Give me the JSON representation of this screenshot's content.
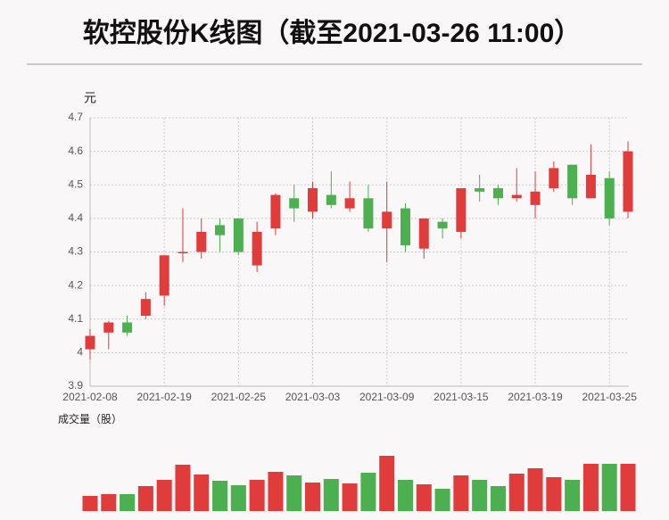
{
  "chart_data": [
    {
      "type": "candlestick",
      "title": "软控股份K线图（截至2021-03-26 11:00）",
      "y_label": "元",
      "categories": [
        "2021-02-08",
        null,
        null,
        null,
        "2021-02-19",
        null,
        null,
        null,
        "2021-02-25",
        null,
        null,
        null,
        "2021-03-03",
        null,
        null,
        null,
        "2021-03-09",
        null,
        null,
        null,
        "2021-03-15",
        null,
        null,
        null,
        "2021-03-19",
        null,
        null,
        null,
        "2021-03-25",
        null
      ],
      "open": [
        4.01,
        4.06,
        4.09,
        4.11,
        4.17,
        4.3,
        4.3,
        4.38,
        4.4,
        4.26,
        4.37,
        4.46,
        4.42,
        4.47,
        4.43,
        4.46,
        4.37,
        4.43,
        4.31,
        4.39,
        4.36,
        4.49,
        4.49,
        4.46,
        4.44,
        4.49,
        4.56,
        4.46,
        4.52,
        4.42
      ],
      "high": [
        4.07,
        4.095,
        4.11,
        4.18,
        4.29,
        4.43,
        4.4,
        4.4,
        4.4,
        4.39,
        4.475,
        4.5,
        4.51,
        4.54,
        4.51,
        4.5,
        4.51,
        4.445,
        4.4,
        4.4,
        4.49,
        4.53,
        4.5,
        4.55,
        4.54,
        4.57,
        4.56,
        4.62,
        4.54,
        4.63
      ],
      "low": [
        3.98,
        4.01,
        4.05,
        4.1,
        4.14,
        4.27,
        4.28,
        4.3,
        4.29,
        4.24,
        4.35,
        4.39,
        4.4,
        4.43,
        4.42,
        4.36,
        4.27,
        4.3,
        4.28,
        4.34,
        4.34,
        4.45,
        4.44,
        4.45,
        4.4,
        4.48,
        4.44,
        4.46,
        4.38,
        4.4
      ],
      "close": [
        4.05,
        4.09,
        4.06,
        4.16,
        4.29,
        4.3,
        4.36,
        4.35,
        4.3,
        4.36,
        4.47,
        4.43,
        4.49,
        4.44,
        4.46,
        4.37,
        4.42,
        4.32,
        4.4,
        4.37,
        4.49,
        4.48,
        4.46,
        4.47,
        4.48,
        4.55,
        4.46,
        4.53,
        4.4,
        4.6
      ],
      "ylim": [
        3.9,
        4.7
      ],
      "yticks": [
        3.9,
        4,
        4.1,
        4.2,
        4.3,
        4.4,
        4.5,
        4.6,
        4.7
      ],
      "grid": true,
      "up_color": "#e03c3c",
      "down_color": "#4caf50"
    },
    {
      "type": "bar",
      "y_label": "成交量（股）",
      "values": [
        17,
        19,
        19,
        28,
        35,
        52,
        41,
        34,
        29,
        35,
        44,
        40,
        32,
        36,
        31,
        43,
        62,
        35,
        30,
        25,
        40,
        35,
        28,
        42,
        48,
        38,
        35,
        53,
        53,
        53
      ]
    }
  ]
}
